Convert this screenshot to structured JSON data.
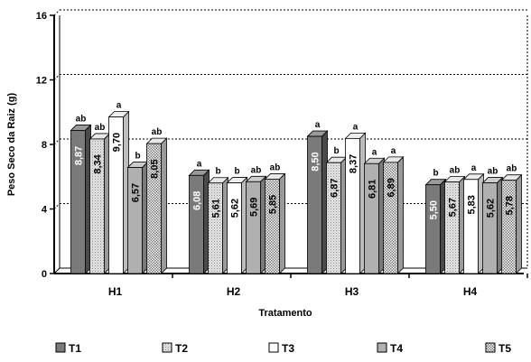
{
  "chart_data": {
    "type": "bar",
    "title": "",
    "ylabel": "Peso Seco da Raiz (g)",
    "xlabel": "Tratamento",
    "ylim": [
      0,
      16
    ],
    "yticks": [
      0,
      4,
      8,
      12,
      16
    ],
    "grid": true,
    "legend_position": "bottom",
    "categories": [
      "H1",
      "H2",
      "H3",
      "H4"
    ],
    "series": [
      {
        "name": "T1",
        "values": [
          8.87,
          6.08,
          8.5,
          5.5
        ],
        "labels": [
          "8,87",
          "6,08",
          "8,50",
          "5,50"
        ],
        "letters": [
          "ab",
          "a",
          "a",
          "b"
        ],
        "fill": "dark",
        "color": "#7a7a7a"
      },
      {
        "name": "T2",
        "values": [
          8.34,
          5.61,
          6.87,
          5.67
        ],
        "labels": [
          "8,34",
          "5,61",
          "6,87",
          "5,67"
        ],
        "letters": [
          "ab",
          "b",
          "b",
          "ab"
        ],
        "fill": "stipple",
        "color": "#d9d9d9"
      },
      {
        "name": "T3",
        "values": [
          9.7,
          5.62,
          8.37,
          5.83
        ],
        "labels": [
          "9,70",
          "5,62",
          "8,37",
          "5,83"
        ],
        "letters": [
          "a",
          "b",
          "a",
          "a"
        ],
        "fill": "white",
        "color": "#ffffff"
      },
      {
        "name": "T4",
        "values": [
          6.57,
          5.69,
          6.81,
          5.62
        ],
        "labels": [
          "6,57",
          "5,69",
          "6,81",
          "5,62"
        ],
        "letters": [
          "b",
          "ab",
          "a",
          "ab"
        ],
        "fill": "medium",
        "color": "#b0b0b0"
      },
      {
        "name": "T5",
        "values": [
          8.05,
          5.85,
          6.89,
          5.78
        ],
        "labels": [
          "8,05",
          "5,85",
          "6,89",
          "5,78"
        ],
        "letters": [
          "ab",
          "ab",
          "a",
          "ab"
        ],
        "fill": "checker",
        "color": "#cfcfcf"
      }
    ]
  }
}
